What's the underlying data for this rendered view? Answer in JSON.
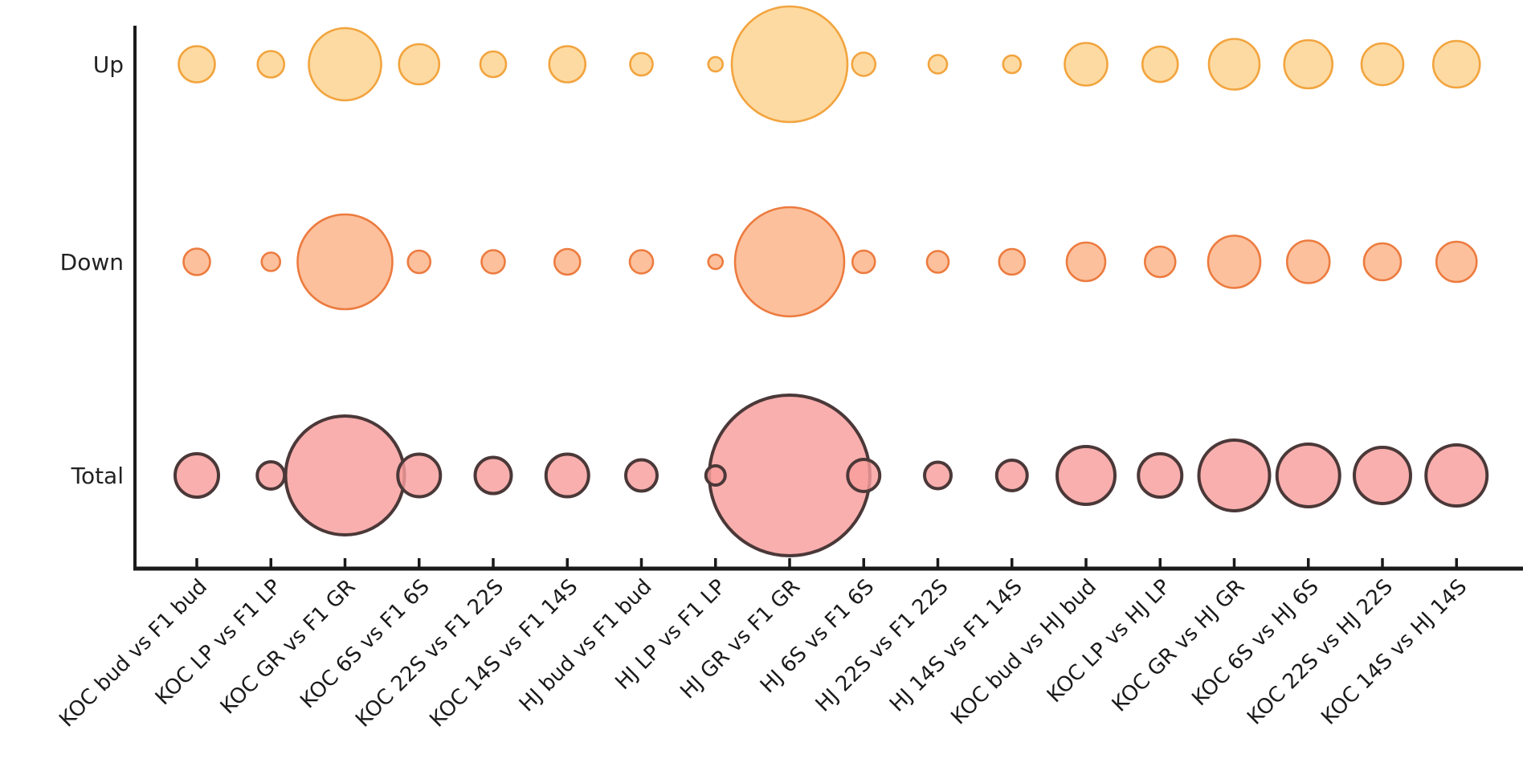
{
  "chart_data": {
    "type": "bubble",
    "title": "",
    "xlabel": "",
    "ylabel": "",
    "grid": false,
    "legend": "none",
    "size_encoding": "bubble radius in screen px (no numeric size legend is shown in the figure); Total bubble area ~ Up area + Down area",
    "rows": [
      "Up",
      "Down",
      "Total"
    ],
    "categories": [
      "KOC bud vs F1 bud",
      "KOC LP vs F1 LP",
      "KOC GR vs F1 GR",
      "KOC 6S vs F1 6S",
      "KOC 22S vs F1 22S",
      "KOC 14S vs F1 14S",
      "HJ bud vs F1 bud",
      "HJ LP vs F1 LP",
      "HJ GR vs F1 GR",
      "HJ 6S vs F1 6S",
      "HJ 22S vs F1 22S",
      "HJ 14S vs F1 14S",
      "KOC bud vs HJ bud",
      "KOC LP vs HJ LP",
      "KOC GR vs HJ GR",
      "KOC 6S vs HJ 6S",
      "KOC 22S vs HJ 22S",
      "KOC 14S vs HJ 14S"
    ],
    "series": [
      {
        "name": "Up",
        "bubble_radius_px": [
          22.5,
          16.5,
          45,
          25,
          16,
          22.5,
          14,
          9,
          72,
          14.5,
          11.5,
          11,
          26.5,
          22,
          31.5,
          30,
          26,
          29
        ],
        "fill": "#fcd28e",
        "stroke": "#f2a43e"
      },
      {
        "name": "Down",
        "bubble_radius_px": [
          16.5,
          11.5,
          59,
          14,
          14.5,
          16,
          14.5,
          9,
          68,
          14,
          13.5,
          16,
          24,
          19,
          32.5,
          26.5,
          23,
          25
        ],
        "fill": "#fbb286",
        "stroke": "#ec7b3f"
      },
      {
        "name": "Total",
        "bubble_radius_px": [
          27,
          17,
          74,
          26.5,
          22.5,
          26.5,
          19.5,
          12,
          100,
          20,
          16.5,
          19,
          36,
          27,
          44,
          39,
          35,
          38
        ],
        "fill": "#f89d9c",
        "stroke": "#4b3838"
      }
    ],
    "colors": {
      "axis": "#1a1a1a",
      "tick_label": "#1a1a1a",
      "row_label": "#222222"
    }
  }
}
